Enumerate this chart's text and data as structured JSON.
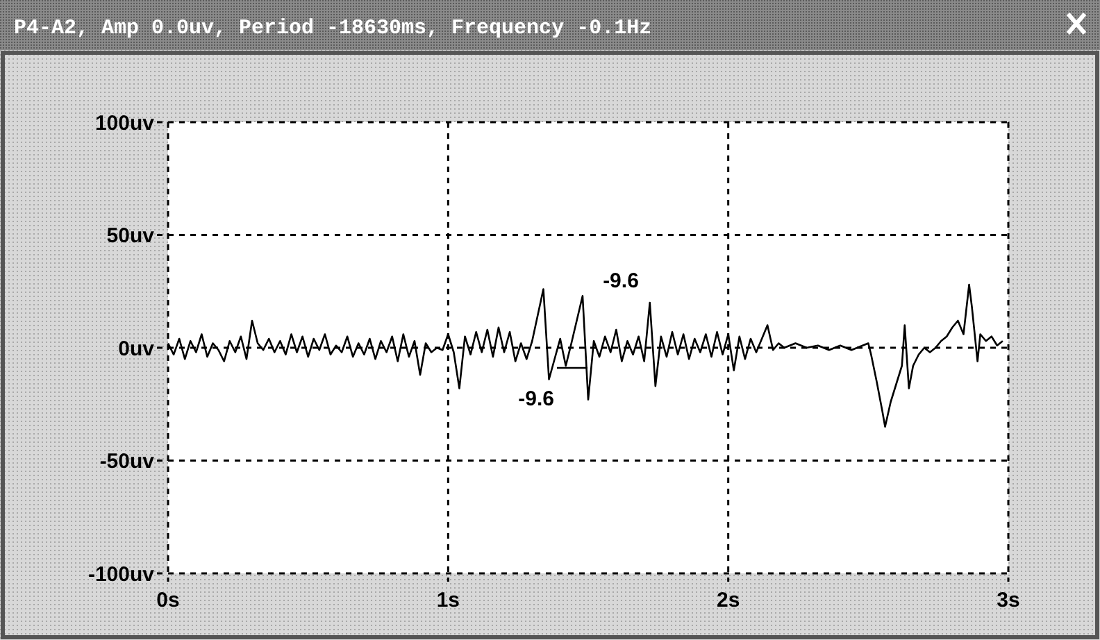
{
  "chart_data": {
    "type": "line",
    "title": "P4-A2, Amp 0.0uv, Period -18630ms, Frequency -0.1Hz",
    "x": [
      0,
      0.02,
      0.04,
      0.06,
      0.08,
      0.1,
      0.12,
      0.14,
      0.16,
      0.18,
      0.2,
      0.22,
      0.24,
      0.26,
      0.28,
      0.3,
      0.32,
      0.34,
      0.36,
      0.38,
      0.4,
      0.42,
      0.44,
      0.46,
      0.48,
      0.5,
      0.52,
      0.54,
      0.56,
      0.58,
      0.6,
      0.62,
      0.64,
      0.66,
      0.68,
      0.7,
      0.72,
      0.74,
      0.76,
      0.78,
      0.8,
      0.82,
      0.84,
      0.86,
      0.88,
      0.9,
      0.92,
      0.94,
      0.96,
      0.98,
      1,
      1.02,
      1.04,
      1.06,
      1.08,
      1.1,
      1.12,
      1.14,
      1.16,
      1.18,
      1.2,
      1.22,
      1.24,
      1.26,
      1.28,
      1.3,
      1.34,
      1.36,
      1.38,
      1.4,
      1.42,
      1.44,
      1.48,
      1.5,
      1.52,
      1.54,
      1.56,
      1.58,
      1.6,
      1.62,
      1.64,
      1.66,
      1.68,
      1.7,
      1.72,
      1.74,
      1.76,
      1.78,
      1.8,
      1.82,
      1.84,
      1.86,
      1.88,
      1.9,
      1.92,
      1.94,
      1.96,
      1.98,
      2,
      2.02,
      2.04,
      2.06,
      2.08,
      2.1,
      2.14,
      2.16,
      2.18,
      2.2,
      2.24,
      2.28,
      2.32,
      2.36,
      2.4,
      2.44,
      2.48,
      2.5,
      2.51,
      2.53,
      2.55,
      2.56,
      2.58,
      2.6,
      2.62,
      2.63,
      2.645,
      2.66,
      2.68,
      2.7,
      2.72,
      2.74,
      2.76,
      2.78,
      2.8,
      2.82,
      2.84,
      2.86,
      2.87,
      2.89,
      2.9,
      2.92,
      2.94,
      2.96,
      2.98
    ],
    "series": [
      {
        "color": "#000000",
        "values": [
          2,
          -3,
          4,
          -5,
          3,
          -2,
          6,
          -4,
          2,
          -1,
          -6,
          3,
          -2,
          5,
          -5,
          12,
          2,
          -1,
          4,
          -2,
          3,
          -3,
          6,
          -2,
          5,
          -4,
          4,
          -1,
          6,
          -3,
          1,
          -2,
          5,
          -4,
          2,
          -3,
          4,
          -5,
          3,
          -2,
          5,
          -6,
          6,
          -4,
          3,
          -12,
          2,
          -2,
          0,
          -1,
          6,
          -2,
          -18,
          5,
          -3,
          7,
          -2,
          8,
          -4,
          9,
          -2,
          7,
          -6,
          2,
          -5,
          3,
          26,
          -14,
          -5,
          4,
          -8,
          2,
          23,
          -23,
          3,
          -4,
          5,
          -2,
          8,
          -6,
          3,
          -3,
          5,
          -6,
          20,
          -17,
          5,
          -4,
          7,
          -3,
          6,
          -5,
          4,
          -2,
          6,
          -4,
          7,
          -3,
          6,
          -10,
          5,
          -5,
          4,
          -2,
          10,
          -1,
          2,
          0,
          2,
          0,
          1,
          -1,
          1,
          -1,
          1,
          2,
          -3,
          -15,
          -28,
          -35,
          -24,
          -16,
          -8,
          10,
          -18,
          -8,
          -3,
          0,
          -2,
          0,
          3,
          5,
          9,
          12,
          6,
          28,
          18,
          -6,
          6,
          3,
          5,
          1,
          3
        ]
      }
    ],
    "xlim": [
      0,
      3
    ],
    "xticks": [
      {
        "value": 0,
        "label": "0s"
      },
      {
        "value": 1,
        "label": "1s"
      },
      {
        "value": 2,
        "label": "2s"
      },
      {
        "value": 3,
        "label": "3s"
      }
    ],
    "ylim": [
      -100,
      100
    ],
    "yticks": [
      {
        "value": -100,
        "label": "-100uv"
      },
      {
        "value": -50,
        "label": "-50uv"
      },
      {
        "value": 0,
        "label": "0uv"
      },
      {
        "value": 50,
        "label": "50uv"
      },
      {
        "value": 100,
        "label": "100uv"
      }
    ],
    "grid": true,
    "marker": "none",
    "line_style": "solid",
    "annotations": [
      "-9.6",
      "-9.6"
    ]
  }
}
